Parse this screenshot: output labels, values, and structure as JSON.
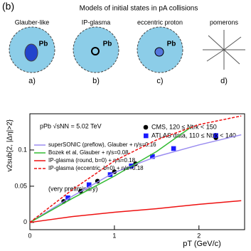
{
  "figure_label": "(b)",
  "models_title": "Models of initial states in pA collisions",
  "models": [
    {
      "name": "Glauber-like",
      "tag": "Pb",
      "panel": "a)"
    },
    {
      "name": "IP-glasma",
      "tag": "Pb",
      "panel": "b)"
    },
    {
      "name": "eccentric proton",
      "tag": "Pb",
      "panel": "c)"
    },
    {
      "name": "pomerons",
      "panel": "d)"
    }
  ],
  "chart_data": {
    "type": "line",
    "annotations": [
      "pPb √sNN = 5.02 TeV",
      "(very preliminary)"
    ],
    "x_label": "pT (GeV/c)",
    "y_label": "v2sub{2, |Δη|>2}",
    "xlim": [
      0,
      2.54
    ],
    "ylim": [
      -0.01,
      0.15
    ],
    "xticks": [
      0,
      1,
      2
    ],
    "yticks": [
      0,
      0.05,
      0.1
    ],
    "series": [
      {
        "name": "CMS, 120 ≤ Ntrk < 150",
        "color": "#000000",
        "marker": "circle",
        "x": [
          0.4,
          0.6,
          0.8,
          1.0,
          1.25,
          2.2
        ],
        "values": [
          0.029,
          0.043,
          0.057,
          0.07,
          0.081,
          0.117
        ]
      },
      {
        "name": "ATLAS data, 110 ≤ Ntrk < 140",
        "color": "#1a1aff",
        "marker": "square",
        "x": [
          0.45,
          0.7,
          0.95,
          1.2,
          1.45,
          1.7,
          2.2
        ],
        "values": [
          0.034,
          0.052,
          0.066,
          0.078,
          0.091,
          0.102,
          0.12
        ]
      },
      {
        "name": "superSONIC (preflow), Glauber + η/s=0.16",
        "color": "#9a8cf0",
        "x": [
          0,
          0.5,
          1,
          1.5,
          2,
          2.5
        ],
        "values": [
          0,
          0.036,
          0.069,
          0.091,
          0.107,
          0.121
        ]
      },
      {
        "name": "Bozek et al, Glauber + η/s=0.08",
        "color": "#33bb33",
        "x": [
          0,
          0.5,
          1,
          1.5,
          1.9
        ],
        "values": [
          0,
          0.033,
          0.064,
          0.098,
          0.131
        ]
      },
      {
        "name": "IP-glasma (round, b=0) + η/s=0.18",
        "color": "#ee1111",
        "x": [
          0,
          0.5,
          1,
          1.5,
          2,
          2.5
        ],
        "values": [
          0,
          0.008,
          0.014,
          0.019,
          0.025,
          0.03
        ]
      },
      {
        "name": "IP-glasma (eccentric, b=0) + η/s=0.18",
        "color": "#ee1111",
        "dashed": true,
        "x": [
          0,
          0.5,
          1,
          1.5,
          2,
          2.5
        ],
        "values": [
          0,
          0.045,
          0.085,
          0.114,
          0.135,
          0.147
        ]
      }
    ]
  }
}
